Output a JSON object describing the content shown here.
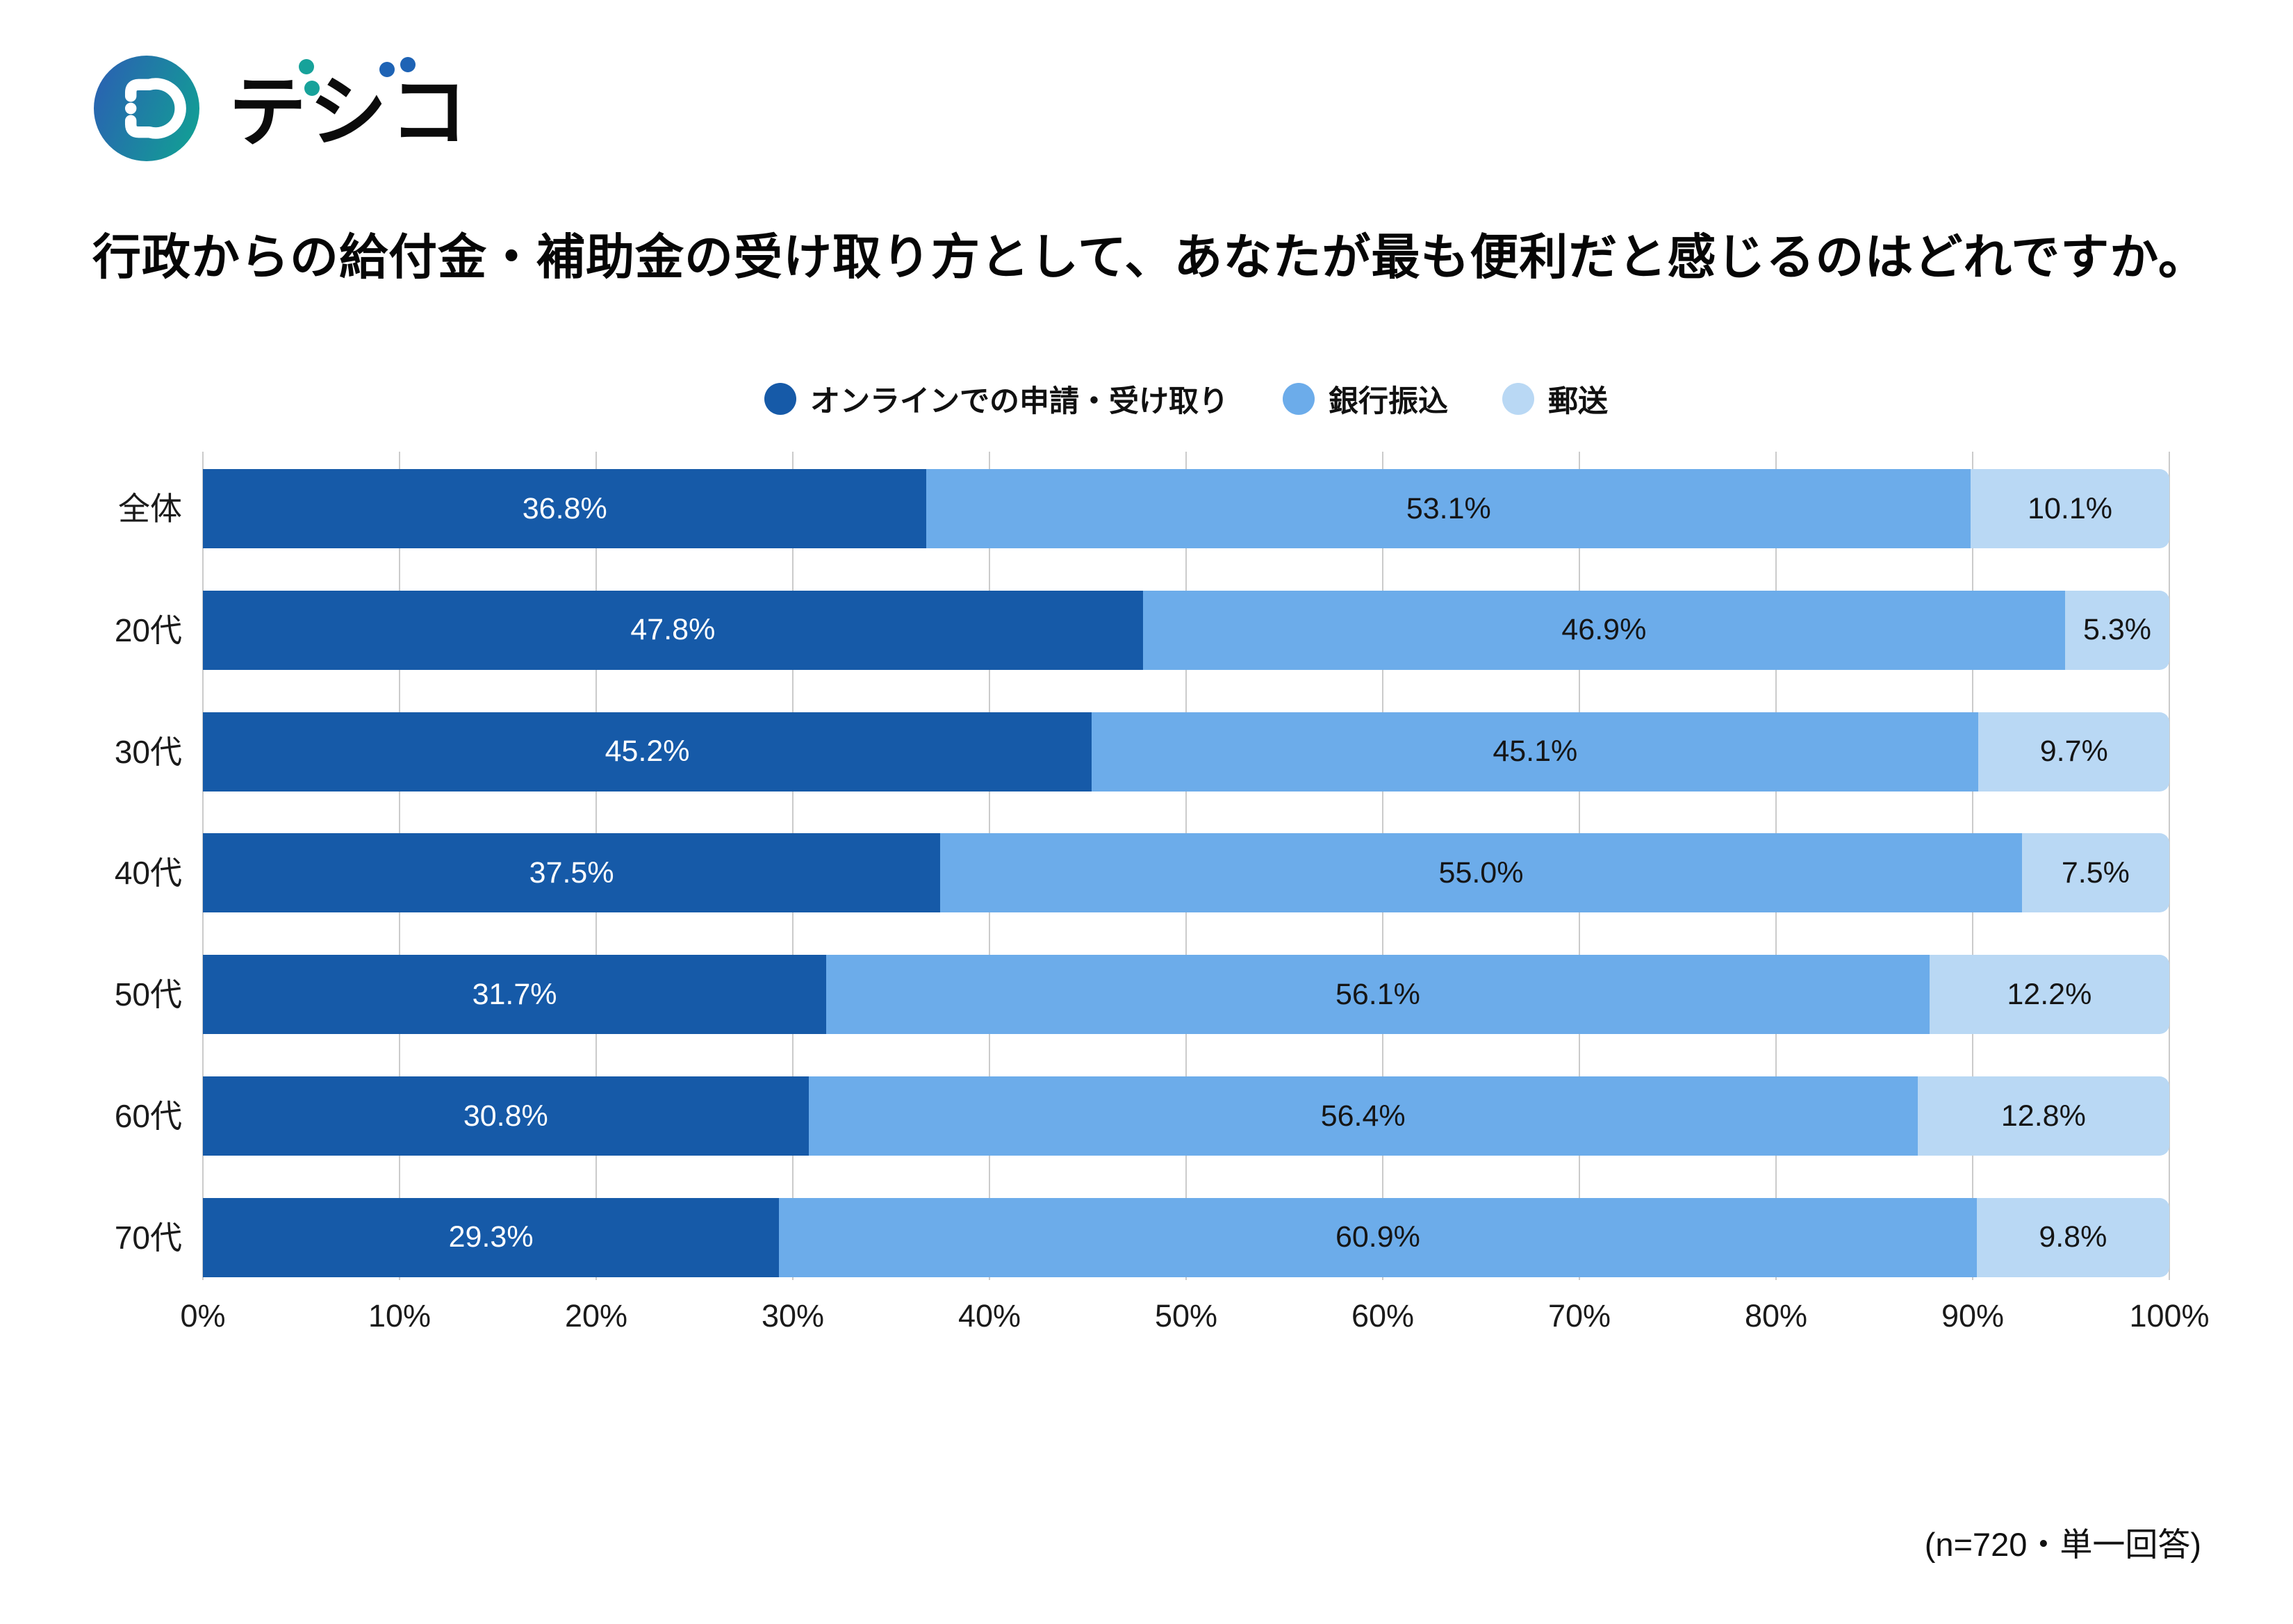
{
  "logo": {
    "text": "デジコ",
    "base_chars": [
      "テ",
      "シ",
      "コ"
    ],
    "gradient": [
      "#2A61B2",
      "#139C96"
    ],
    "teal_accent": "#17A29A",
    "blue_accent": "#1E63B5",
    "text_color": "#0b0b0b"
  },
  "title": "行政からの給付金・補助金の受け取り方として、あなたが最も便利だと感じるのはどれですか。",
  "footnote": "(n=720・単一回答)",
  "colors": {
    "grid": "#CBCBCB",
    "label_on_dark": "#ffffff",
    "label_on_light": "#151515"
  },
  "chart_data": {
    "type": "bar",
    "stacked": true,
    "orientation": "horizontal",
    "title": "行政からの給付金・補助金の受け取り方として、あなたが最も便利だと感じるのはどれですか。",
    "categories": [
      "全体",
      "20代",
      "30代",
      "40代",
      "50代",
      "60代",
      "70代"
    ],
    "series": [
      {
        "name": "オンラインでの申請・受け取り",
        "color": "#165AA8",
        "values": [
          36.8,
          47.8,
          45.2,
          37.5,
          31.7,
          30.8,
          29.3
        ]
      },
      {
        "name": "銀行振込",
        "color": "#6CACEA",
        "values": [
          53.1,
          46.9,
          45.1,
          55.0,
          56.1,
          56.4,
          60.9
        ]
      },
      {
        "name": "郵送",
        "color": "#B9D8F4",
        "values": [
          10.1,
          5.3,
          9.7,
          7.5,
          12.2,
          12.8,
          9.8
        ]
      }
    ],
    "value_suffix": "%",
    "value_decimals": 1,
    "x_ticks": [
      "0%",
      "10%",
      "20%",
      "30%",
      "40%",
      "50%",
      "60%",
      "70%",
      "80%",
      "90%",
      "100%"
    ],
    "xlim": [
      0,
      100
    ],
    "grid": true,
    "legend_position": "top",
    "sample_note": "(n=720・単一回答)"
  }
}
